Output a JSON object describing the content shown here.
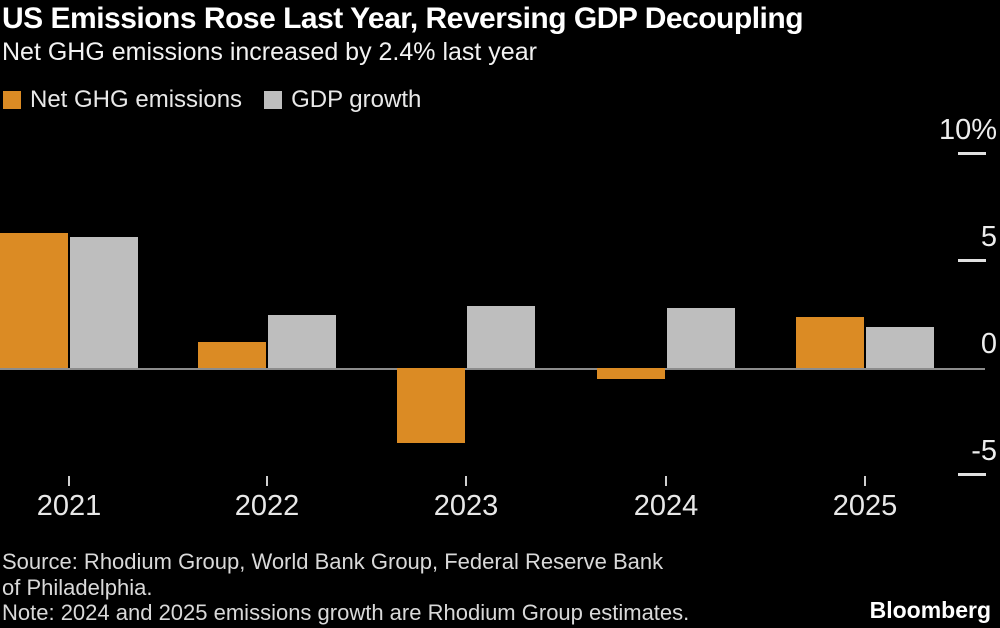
{
  "header": {
    "title": "US Emissions Rose Last Year, Reversing GDP Decoupling",
    "subtitle": "Net GHG emissions increased by 2.4% last year"
  },
  "legend": {
    "items": [
      {
        "label": "Net GHG emissions",
        "color": "#DB8B24"
      },
      {
        "label": "GDP growth",
        "color": "#BEBEBE"
      }
    ]
  },
  "chart_data": {
    "type": "bar",
    "title": "US Emissions Rose Last Year, Reversing GDP Decoupling",
    "subtitle": "Net GHG emissions increased by 2.4% last year",
    "categories": [
      "2021",
      "2022",
      "2023",
      "2024",
      "2025"
    ],
    "series": [
      {
        "name": "Net GHG emissions",
        "color": "#DB8B24",
        "values": [
          6.3,
          1.2,
          -3.5,
          -0.5,
          2.4
        ]
      },
      {
        "name": "GDP growth",
        "color": "#BEBEBE",
        "values": [
          6.1,
          2.5,
          2.9,
          2.8,
          1.9
        ]
      }
    ],
    "xlabel": "",
    "ylabel": "",
    "y_axis": {
      "ticks": [
        10,
        5,
        0,
        -5
      ],
      "tick_labels": [
        "10%",
        "5",
        "0",
        "-5"
      ],
      "ylim": [
        -6.5,
        11.6
      ]
    },
    "grid": false,
    "legend_position": "top-left",
    "background_color": "#000000",
    "baseline_color": "#8c8c8c"
  },
  "footer": {
    "source_line1": "Source: Rhodium Group, World Bank Group, Federal Reserve Bank",
    "source_line2": "of Philadelphia.",
    "note": "Note: 2024 and 2025 emissions growth are Rhodium Group estimates.",
    "brand": "Bloomberg"
  }
}
